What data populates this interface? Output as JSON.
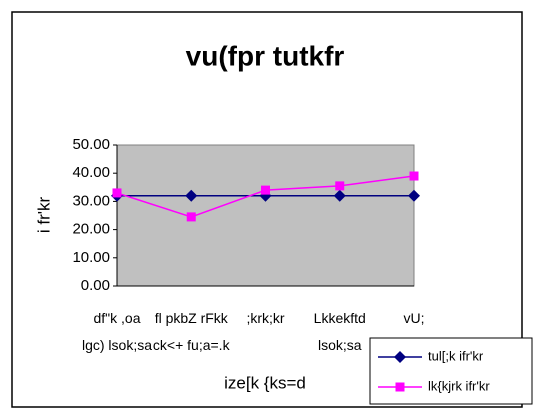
{
  "chart_data": {
    "type": "line",
    "title": "vu(fpr tutkfr",
    "y_label": "i fr'kr",
    "x_label": "ize[k {ks=d",
    "categories": [
      "df\"k ,oa\nlgc) lsok;sa",
      "fl pkbZ rFkk\nck<+ fu;a=.k",
      ";krk;kr",
      "Lkkekftd\nlsok;sa",
      "vU;"
    ],
    "series": [
      {
        "name": "tul[;k ifr'kr",
        "color": "#000080",
        "marker": "diamond",
        "values": [
          32,
          32,
          32,
          32,
          32
        ]
      },
      {
        "name": "lk{kjrk ifr'kr",
        "color": "#ff00ff",
        "marker": "square",
        "values": [
          33,
          24.5,
          34,
          35.5,
          39
        ]
      }
    ],
    "ylim": [
      0,
      50
    ],
    "yticks": [
      {
        "value": 0,
        "label": "0.00"
      },
      {
        "value": 10,
        "label": "10.00"
      },
      {
        "value": 20,
        "label": "20.00"
      },
      {
        "value": 30,
        "label": "30.00"
      },
      {
        "value": 40,
        "label": "40.00"
      },
      {
        "value": 50,
        "label": "50.00"
      }
    ],
    "legend": "bottom-right"
  }
}
